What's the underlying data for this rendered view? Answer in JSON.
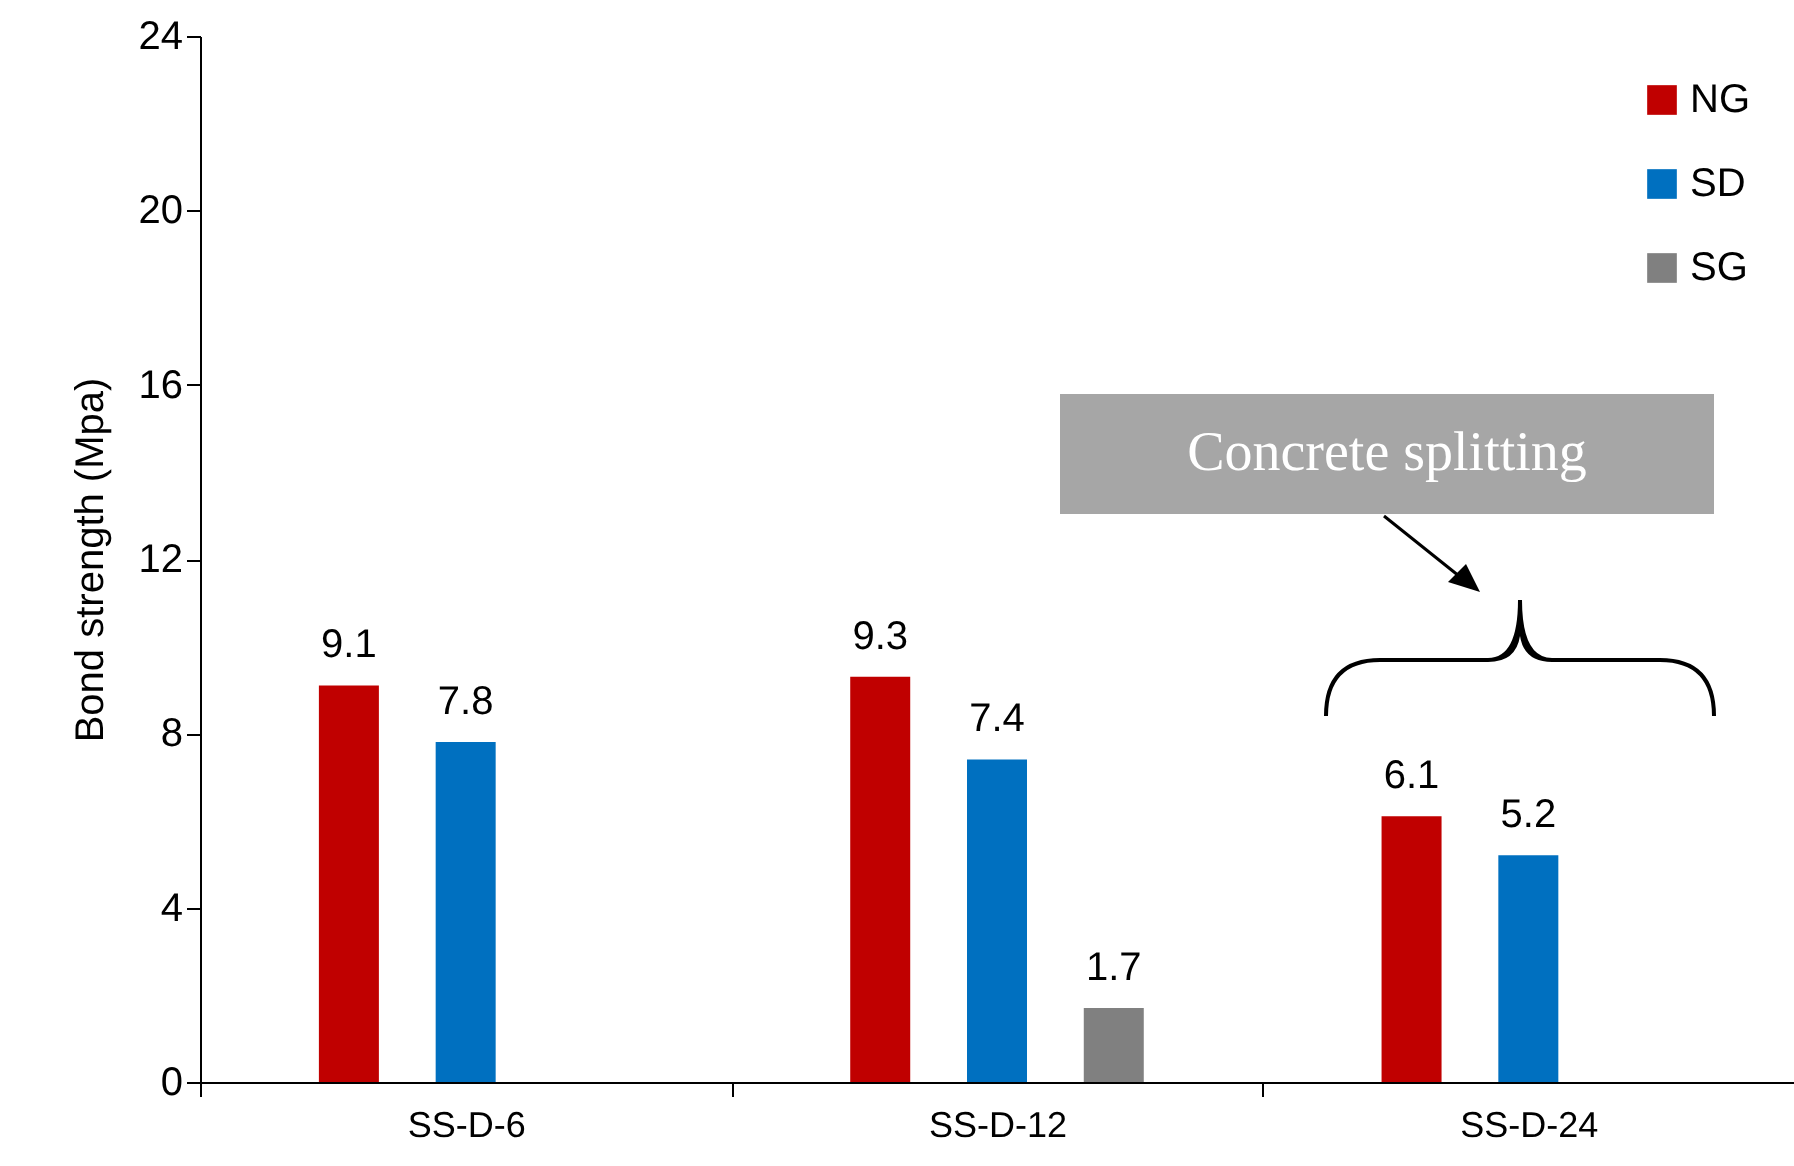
{
  "chart_data": {
    "type": "bar",
    "ylabel": "Bond strength (Mpa)",
    "categories": [
      "SS-D-6",
      "SS-D-12",
      "SS-D-24"
    ],
    "series": [
      {
        "name": "NG",
        "color": "#c00000",
        "values": [
          9.1,
          9.3,
          6.1
        ]
      },
      {
        "name": "SD",
        "color": "#0070c0",
        "values": [
          7.8,
          7.4,
          5.2
        ]
      },
      {
        "name": "SG",
        "color": "#808080",
        "values": [
          null,
          1.7,
          null
        ]
      }
    ],
    "ylim": [
      0,
      24
    ],
    "yticks": [
      0,
      4,
      8,
      12,
      16,
      20,
      24
    ],
    "data_labels": true,
    "legend": "top right",
    "grid": false,
    "annotations": [
      "Concrete splitting"
    ]
  }
}
